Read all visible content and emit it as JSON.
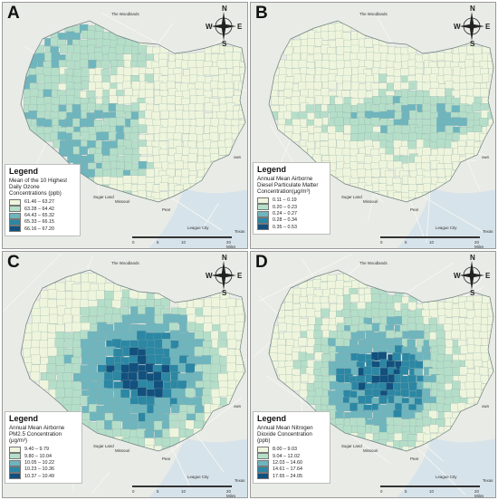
{
  "places": {
    "woodlands": "The Woodlands",
    "sugar_land": "Sugar Land",
    "missouri": "Missouri",
    "pearland": "Pear",
    "league_city": "League City",
    "texas": "Texas",
    "baytown": "own"
  },
  "compass": {
    "n": "N",
    "s": "S",
    "e": "E",
    "w": "W"
  },
  "scale": {
    "ticks": [
      "0",
      "5",
      "10",
      "20 Miles"
    ]
  },
  "panels": [
    {
      "label": "A",
      "legend_title": "Legend",
      "legend_desc": "Mean of the 10 Highest Daily Ozone Concentrations (ppb)",
      "classes": [
        {
          "range": "61.46 – 63.27",
          "color": "#eef5dc"
        },
        {
          "range": "63.28 – 64.42",
          "color": "#b5dec9"
        },
        {
          "range": "64.43 – 65.32",
          "color": "#6fb5bd"
        },
        {
          "range": "65.33 – 66.15",
          "color": "#2b87a4"
        },
        {
          "range": "66.16 – 67.20",
          "color": "#12507e"
        }
      ],
      "pattern": "west"
    },
    {
      "label": "B",
      "legend_title": "Legend",
      "legend_desc": "Annual Mean Airborne Diesel Particulate Matter Concentration(µg/m³)",
      "classes": [
        {
          "range": "0.11 – 0.19",
          "color": "#eef5dc"
        },
        {
          "range": "0.20 – 0.23",
          "color": "#b5dec9"
        },
        {
          "range": "0.24 – 0.27",
          "color": "#6fb5bd"
        },
        {
          "range": "0.28 – 0.34",
          "color": "#2b87a4"
        },
        {
          "range": "0.35 – 0.53",
          "color": "#12507e"
        }
      ],
      "pattern": "corridor"
    },
    {
      "label": "C",
      "legend_title": "Legend",
      "legend_desc": "Annual Mean Airborne PM2.5 Concentration (µg/m³)",
      "classes": [
        {
          "range": "9.40 – 9.79",
          "color": "#eef5dc"
        },
        {
          "range": "9.80 – 10.04",
          "color": "#b5dec9"
        },
        {
          "range": "10.05 – 10.22",
          "color": "#6fb5bd"
        },
        {
          "range": "10.23 – 10.36",
          "color": "#2b87a4"
        },
        {
          "range": "10.37 – 10.49",
          "color": "#12507e"
        }
      ],
      "pattern": "radial"
    },
    {
      "label": "D",
      "legend_title": "Legend",
      "legend_desc": "Annual Mean Nitrogen Dioxide Concentration (ppb)",
      "classes": [
        {
          "range": "8.00 – 9.03",
          "color": "#eef5dc"
        },
        {
          "range": "9.04 – 12.02",
          "color": "#b5dec9"
        },
        {
          "range": "12.03 – 14.60",
          "color": "#6fb5bd"
        },
        {
          "range": "14.61 – 17.64",
          "color": "#2b87a4"
        },
        {
          "range": "17.65 – 24.05",
          "color": "#12507e"
        }
      ],
      "pattern": "urban"
    }
  ]
}
